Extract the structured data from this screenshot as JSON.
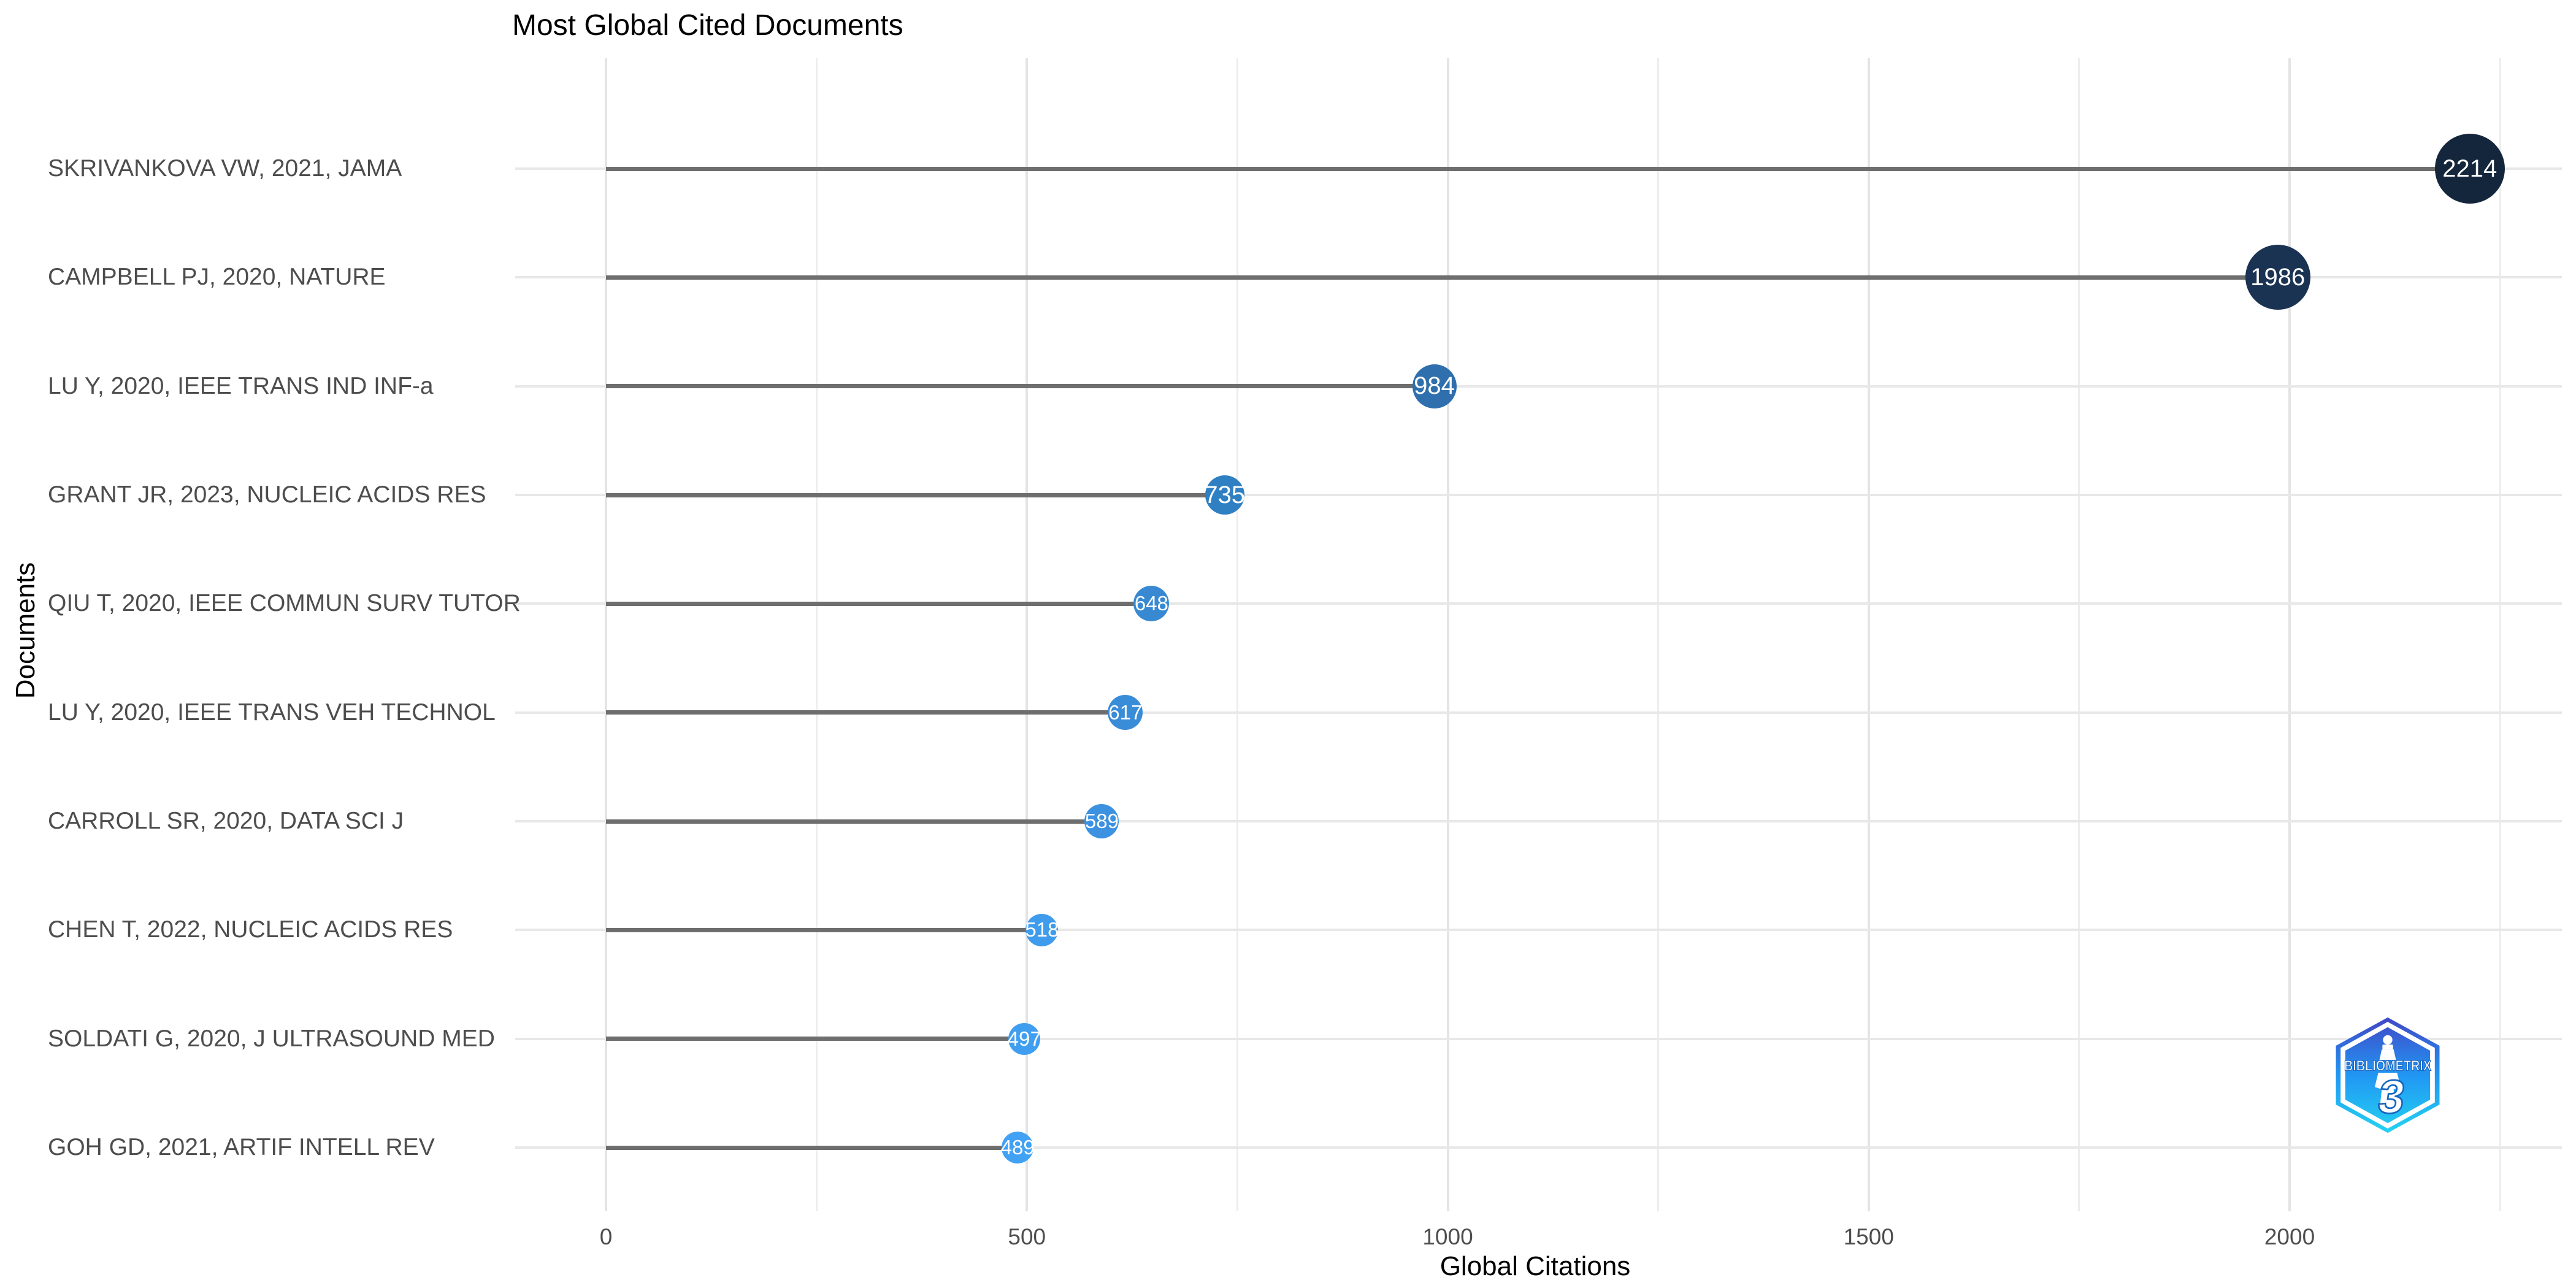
{
  "chart_data": {
    "type": "scatter",
    "variant": "horizontal-lollipop-dot",
    "title": "Most Global Cited Documents",
    "xlabel": "Global Citations",
    "ylabel": "Documents",
    "xlim": [
      0,
      2300
    ],
    "x_major_ticks": [
      0,
      500,
      1000,
      1500,
      2000
    ],
    "x_minor_gridlines": [
      250,
      750,
      1250,
      1750,
      2250
    ],
    "grid": true,
    "legend": false,
    "points": [
      {
        "label": "SKRIVANKOVA VW, 2021, JAMA",
        "value": 2214,
        "color": "#14263c",
        "diameter": 114
      },
      {
        "label": "CAMPBELL PJ, 2020, NATURE",
        "value": 1986,
        "color": "#1b3352",
        "diameter": 106
      },
      {
        "label": "LU Y, 2020, IEEE TRANS IND INF-a",
        "value": 984,
        "color": "#2f6fae",
        "diameter": 72
      },
      {
        "label": "GRANT JR, 2023, NUCLEIC ACIDS RES",
        "value": 735,
        "color": "#2f7fc3",
        "diameter": 64
      },
      {
        "label": "QIU T, 2020, IEEE COMMUN SURV TUTOR",
        "value": 648,
        "color": "#3889d2",
        "diameter": 58
      },
      {
        "label": "LU Y, 2020, IEEE TRANS VEH TECHNOL",
        "value": 617,
        "color": "#398cd7",
        "diameter": 57
      },
      {
        "label": "CARROLL SR, 2020, DATA SCI J",
        "value": 589,
        "color": "#3c92e0",
        "diameter": 56
      },
      {
        "label": "CHEN T, 2022, NUCLEIC ACIDS RES",
        "value": 518,
        "color": "#3f9beb",
        "diameter": 53
      },
      {
        "label": "SOLDATI G, 2020, J ULTRASOUND MED",
        "value": 497,
        "color": "#409ef0",
        "diameter": 52
      },
      {
        "label": "GOH GD, 2021, ARTIF INTELL REV",
        "value": 489,
        "color": "#41a1f4",
        "diameter": 52
      }
    ]
  },
  "colors": {
    "stick": "#6e6e6e",
    "grid_major": "#e4e4e4",
    "grid_minor": "#ededed",
    "row_line": "#e8e8e8",
    "tick_text": "#4d4d4d",
    "label_text": "#4d4d4d",
    "title_text": "#000000"
  },
  "logo": {
    "name": "bibliometrix",
    "text": "BIBLIOMETRIX",
    "numeral": "3",
    "gradient_top": "#4147c6",
    "gradient_mid": "#2196f3",
    "gradient_bottom": "#24d3f2"
  }
}
